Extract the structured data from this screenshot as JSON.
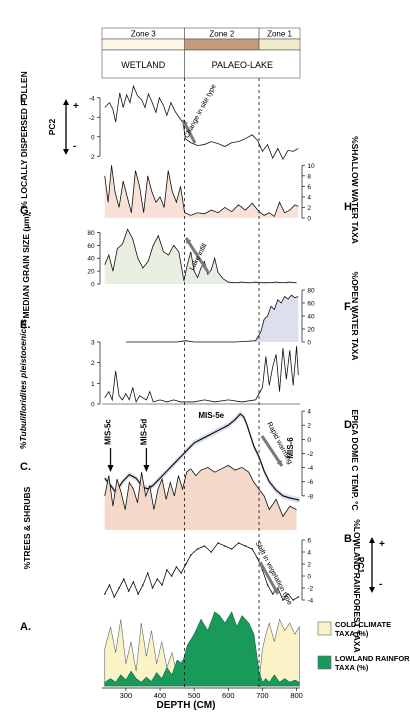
{
  "chart_data": {
    "type": "line",
    "xlabel": "DEPTH (CM)",
    "xlim": [
      230,
      810
    ],
    "x_ticks": [
      300,
      400,
      500,
      600,
      700,
      800
    ],
    "zone_boundaries": [
      472,
      690
    ],
    "zones": [
      {
        "label": "Zone 3",
        "from": 230,
        "to": 472,
        "color": "#fbf6e6"
      },
      {
        "label": "Zone 2",
        "from": 472,
        "to": 690,
        "color": "#c49a7c"
      },
      {
        "label": "Zone 1",
        "from": 690,
        "to": 810,
        "color": "#eeeacb"
      }
    ],
    "environments": [
      {
        "label": "WETLAND",
        "from": 230,
        "to": 472
      },
      {
        "label": "PALAEO-LAKE",
        "from": 472,
        "to": 810
      }
    ],
    "panels": [
      {
        "letter": "I.",
        "ylabel": "% LOCALLY DISPERSED POLLEN",
        "secondary_label": "PC2",
        "plus": "+",
        "minus": "-",
        "ylim": [
          -5,
          3
        ],
        "inverted": true,
        "yticks": [
          -4,
          -2,
          0,
          2
        ],
        "annotation": "Change in site type",
        "x": [
          238,
          252,
          262,
          270,
          282,
          292,
          302,
          312,
          322,
          334,
          346,
          356,
          366,
          376,
          388,
          398,
          410,
          420,
          432,
          444,
          456,
          468,
          474,
          490,
          510,
          530,
          550,
          570,
          590,
          610,
          630,
          650,
          670,
          686,
          700,
          715,
          730,
          745,
          760,
          775,
          790,
          805
        ],
        "y": [
          -3.0,
          -3.5,
          -2.8,
          -1.5,
          -4.5,
          -3.0,
          -4.3,
          -3.5,
          -5.2,
          -4.2,
          -3.8,
          -3.0,
          -4.4,
          -3.6,
          -2.5,
          -4.0,
          -3.2,
          -2.2,
          -3.5,
          -2.6,
          -2.0,
          -1.4,
          0.2,
          0.6,
          0.9,
          0.8,
          0.5,
          0.7,
          1.0,
          0.6,
          0.5,
          0.2,
          -0.2,
          0.4,
          1.5,
          0.8,
          2.2,
          1.2,
          2.3,
          1.4,
          1.5,
          1.2
        ]
      },
      {
        "letter": "H.",
        "ylabel": "%SHALLOW WATER TAXA",
        "ylim": [
          0,
          11
        ],
        "yticks": [
          0,
          2,
          4,
          6,
          8,
          10
        ],
        "fill": "#f7ded3",
        "x": [
          238,
          248,
          258,
          268,
          280,
          292,
          304,
          316,
          328,
          340,
          352,
          364,
          376,
          388,
          400,
          412,
          424,
          436,
          448,
          460,
          472,
          490,
          510,
          530,
          550,
          570,
          590,
          610,
          630,
          650,
          670,
          690,
          705,
          720,
          735,
          750,
          765,
          780,
          795,
          805
        ],
        "y": [
          8,
          3,
          10,
          5,
          2,
          7,
          4,
          1,
          9,
          6,
          1,
          8,
          5,
          3,
          4,
          2,
          9,
          5,
          3,
          6,
          1,
          0.5,
          1,
          0.8,
          1.5,
          1.0,
          2.0,
          1.2,
          2.5,
          1.5,
          2.8,
          1.2,
          0.5,
          1.0,
          0.3,
          3.0,
          1.0,
          1.5,
          2.5,
          2.2
        ]
      },
      {
        "letter": "G.",
        "ylabel": "MEDIAN GRAIN SIZE (µm)",
        "ylim": [
          0,
          90
        ],
        "yticks": [
          0,
          20,
          40,
          60,
          80
        ],
        "fill": "#e7ecdf",
        "annotation": "Lake infill",
        "x": [
          238,
          250,
          262,
          275,
          290,
          305,
          320,
          335,
          350,
          365,
          380,
          395,
          410,
          425,
          440,
          455,
          470,
          480,
          490,
          500,
          510,
          520,
          530,
          540,
          550,
          560,
          570,
          585,
          600,
          620,
          640,
          660,
          680,
          700,
          720,
          740,
          760,
          780,
          800
        ],
        "y": [
          30,
          45,
          20,
          55,
          62,
          85,
          70,
          40,
          25,
          35,
          60,
          75,
          50,
          45,
          60,
          50,
          5,
          30,
          50,
          20,
          10,
          25,
          35,
          15,
          22,
          40,
          18,
          8,
          3,
          2,
          3,
          2,
          3,
          2,
          2,
          3,
          2,
          3,
          2
        ]
      },
      {
        "letter": "F.",
        "ylabel": "%OPEN WATER TAXA",
        "ylim": [
          0,
          80
        ],
        "yticks": [
          0,
          20,
          40,
          60,
          80
        ],
        "fill": "#d8dcea",
        "x": [
          300,
          330,
          360,
          390,
          420,
          450,
          475,
          500,
          530,
          560,
          590,
          620,
          650,
          680,
          695,
          705,
          715,
          725,
          735,
          745,
          755,
          765,
          775,
          785,
          795,
          805
        ],
        "y": [
          0,
          0,
          0,
          0,
          0,
          0,
          2,
          0,
          0,
          0,
          0,
          0,
          1,
          2,
          15,
          35,
          40,
          55,
          50,
          65,
          60,
          70,
          66,
          72,
          68,
          70
        ]
      },
      {
        "letter": "E.",
        "ylabel": "%Tubulifloridites pleistocenicus",
        "ylim": [
          0,
          3
        ],
        "yticks": [
          0,
          1,
          2,
          3
        ],
        "x": [
          238,
          250,
          260,
          270,
          280,
          290,
          300,
          310,
          320,
          330,
          340,
          350,
          360,
          370,
          380,
          400,
          420,
          440,
          460,
          480,
          500,
          530,
          560,
          600,
          640,
          680,
          700,
          710,
          720,
          730,
          740,
          750,
          760,
          770,
          780,
          790,
          800,
          805
        ],
        "y": [
          0.3,
          0.6,
          0.2,
          1.6,
          0.4,
          0.2,
          0.5,
          0.2,
          0.8,
          0.1,
          0.4,
          0.3,
          0.2,
          0.6,
          0.1,
          0.2,
          0.1,
          0.2,
          0.1,
          0.1,
          0.1,
          0.2,
          0.1,
          0.2,
          0.1,
          0.2,
          0.8,
          2.3,
          0.9,
          1.8,
          2.4,
          0.6,
          2.7,
          1.2,
          2.6,
          0.9,
          2.8,
          1.4
        ]
      },
      {
        "letter": "D.",
        "ylabel": "EPICA DOME C TEMP. °C",
        "ylim": [
          -10,
          5
        ],
        "yticks": [
          -8,
          -6,
          -4,
          -2,
          0,
          2,
          4
        ],
        "annotation": "Rapid warming",
        "marker_labels": [
          {
            "label": "MIS-5c",
            "x": 255
          },
          {
            "label": "MIS-5d",
            "x": 360
          },
          {
            "label": "MIS-5e",
            "x": 550
          },
          {
            "label": "MIS-6",
            "x": 760
          }
        ],
        "x": [
          238,
          255,
          270,
          290,
          310,
          330,
          350,
          365,
          380,
          400,
          420,
          440,
          460,
          480,
          500,
          520,
          540,
          560,
          580,
          600,
          620,
          635,
          645,
          655,
          665,
          675,
          690,
          705,
          720,
          740,
          760,
          780,
          800,
          808
        ],
        "y": [
          -5.5,
          -6.5,
          -7.5,
          -6.0,
          -5.0,
          -5.5,
          -6.8,
          -7.0,
          -6.5,
          -5.5,
          -4.5,
          -3.5,
          -2.5,
          -1.5,
          -0.5,
          0.0,
          0.5,
          1.0,
          1.5,
          2.0,
          2.8,
          3.6,
          3.2,
          2.0,
          0.5,
          -1.0,
          -2.5,
          -4.5,
          -6.0,
          -7.2,
          -8.0,
          -8.3,
          -8.5,
          -8.6
        ]
      },
      {
        "letter": "C.",
        "ylabel": "%TREES & SHRUBS",
        "ylim": [
          0,
          100
        ],
        "yticks": [],
        "fill": "#f3d4c4",
        "x": [
          238,
          250,
          262,
          274,
          286,
          298,
          310,
          322,
          334,
          346,
          358,
          370,
          382,
          394,
          406,
          418,
          430,
          442,
          454,
          466,
          478,
          490,
          505,
          520,
          540,
          560,
          580,
          600,
          620,
          640,
          660,
          675,
          690,
          705,
          720,
          740,
          760,
          780,
          800
        ],
        "y": [
          50,
          80,
          35,
          75,
          55,
          30,
          70,
          60,
          40,
          85,
          50,
          65,
          30,
          60,
          75,
          45,
          70,
          50,
          80,
          60,
          85,
          90,
          80,
          88,
          92,
          85,
          90,
          95,
          88,
          92,
          85,
          70,
          60,
          50,
          30,
          45,
          20,
          35,
          30
        ]
      },
      {
        "letter": "B.",
        "ylabel": "%LOWLAND RAINFOREST TAXA",
        "secondary_label": "PC1",
        "plus": "+",
        "minus": "-",
        "ylim": [
          -5,
          7
        ],
        "yticks": [
          -4,
          -2,
          0,
          2,
          4,
          6
        ],
        "annotation": "Shift in vegetation type",
        "x": [
          238,
          252,
          266,
          280,
          294,
          308,
          322,
          336,
          350,
          364,
          378,
          392,
          406,
          420,
          434,
          448,
          462,
          476,
          490,
          510,
          530,
          550,
          570,
          590,
          610,
          630,
          650,
          670,
          685,
          700,
          715,
          730,
          745,
          760,
          775,
          790,
          805
        ],
        "y": [
          -3.0,
          -1.5,
          -3.5,
          -2.0,
          -0.5,
          -2.5,
          -1.0,
          -3.0,
          -1.5,
          0.5,
          -2.0,
          -0.5,
          -1.5,
          1.0,
          0.0,
          1.5,
          0.5,
          2.0,
          3.5,
          4.5,
          5.0,
          4.0,
          5.5,
          5.0,
          4.5,
          5.5,
          5.0,
          4.5,
          3.0,
          1.0,
          -1.5,
          -3.0,
          -2.0,
          -4.0,
          -3.0,
          -4.0,
          -3.5
        ]
      },
      {
        "letter": "A.",
        "ylabel": "",
        "type": "area",
        "ylim": [
          0,
          100
        ],
        "series": [
          {
            "name": "COLD CLIMATE TAXA (%)",
            "color": "#f9f3c7",
            "x": [
              238,
              255,
              270,
              285,
              300,
              315,
              330,
              345,
              360,
              375,
              390,
              405,
              420,
              435,
              450,
              465,
              472,
              690,
              700,
              710,
              720,
              735,
              750,
              765,
              780,
              795,
              808
            ],
            "y": [
              50,
              80,
              45,
              90,
              30,
              60,
              20,
              85,
              40,
              75,
              30,
              60,
              25,
              45,
              15,
              35,
              5,
              5,
              50,
              70,
              85,
              60,
              90,
              75,
              85,
              70,
              80
            ]
          },
          {
            "name": "LOWLAND RAINFOREST TAXA (%)",
            "color": "#1a9a5a",
            "x": [
              238,
              255,
              270,
              285,
              300,
              315,
              330,
              345,
              360,
              375,
              390,
              405,
              420,
              435,
              450,
              465,
              480,
              500,
              520,
              540,
              560,
              575,
              590,
              610,
              625,
              640,
              660,
              675,
              690,
              700,
              710,
              720,
              735,
              750,
              765,
              780,
              795,
              808
            ],
            "y": [
              5,
              10,
              5,
              15,
              8,
              20,
              10,
              5,
              12,
              6,
              18,
              10,
              25,
              15,
              35,
              30,
              55,
              70,
              90,
              75,
              100,
              95,
              85,
              100,
              80,
              95,
              85,
              70,
              20,
              5,
              10,
              5,
              15,
              5,
              10,
              5,
              8,
              5
            ]
          }
        ]
      }
    ]
  }
}
